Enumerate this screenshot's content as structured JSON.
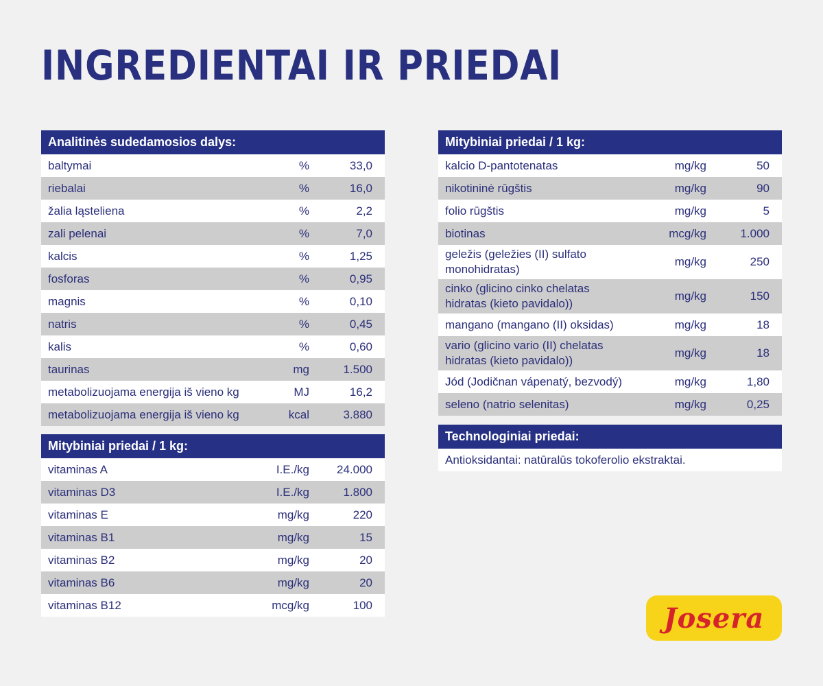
{
  "title": "INGREDIENTAI IR PRIEDAI",
  "analytical": {
    "header": "Analitinės sudedamosios dalys:",
    "rows": [
      {
        "name": "baltymai",
        "unit": "%",
        "value": "33,0"
      },
      {
        "name": "riebalai",
        "unit": "%",
        "value": "16,0"
      },
      {
        "name": "žalia ląsteliena",
        "unit": "%",
        "value": "2,2"
      },
      {
        "name": "zali pelenai",
        "unit": "%",
        "value": "7,0"
      },
      {
        "name": "kalcis",
        "unit": "%",
        "value": "1,25"
      },
      {
        "name": "fosforas",
        "unit": "%",
        "value": "0,95"
      },
      {
        "name": "magnis",
        "unit": "%",
        "value": "0,10"
      },
      {
        "name": "natris",
        "unit": "%",
        "value": "0,45"
      },
      {
        "name": "kalis",
        "unit": "%",
        "value": "0,60"
      },
      {
        "name": "taurinas",
        "unit": "mg",
        "value": "1.500"
      },
      {
        "name": "metabolizuojama energija iš vieno kg",
        "unit": "MJ",
        "value": "16,2"
      },
      {
        "name": "metabolizuojama energija iš vieno kg",
        "unit": "kcal",
        "value": "3.880"
      }
    ]
  },
  "vitamins": {
    "header": "Mitybiniai priedai / 1 kg:",
    "rows": [
      {
        "name": "vitaminas A",
        "unit": "I.E./kg",
        "value": "24.000"
      },
      {
        "name": "vitaminas D3",
        "unit": "I.E./kg",
        "value": "1.800"
      },
      {
        "name": "vitaminas E",
        "unit": "mg/kg",
        "value": "220"
      },
      {
        "name": "vitaminas B1",
        "unit": "mg/kg",
        "value": "15"
      },
      {
        "name": "vitaminas B2",
        "unit": "mg/kg",
        "value": "20"
      },
      {
        "name": "vitaminas B6",
        "unit": "mg/kg",
        "value": "20"
      },
      {
        "name": "vitaminas B12",
        "unit": "mcg/kg",
        "value": "100"
      }
    ]
  },
  "nutritional": {
    "header": "Mitybiniai priedai / 1 kg:",
    "rows": [
      {
        "name": "kalcio D-pantotenatas",
        "unit": "mg/kg",
        "value": "50"
      },
      {
        "name": "nikotininė rūgštis",
        "unit": "mg/kg",
        "value": "90"
      },
      {
        "name": "folio rūgštis",
        "unit": "mg/kg",
        "value": "5"
      },
      {
        "name": "biotinas",
        "unit": "mcg/kg",
        "value": "1.000"
      },
      {
        "name": "geležis (geležies (II) sulfato monohidratas)",
        "unit": "mg/kg",
        "value": "250",
        "tall": true
      },
      {
        "name": "cinko (glicino cinko chelatas hidratas (kieto pavidalo))",
        "unit": "mg/kg",
        "value": "150",
        "tall": true
      },
      {
        "name": "mangano (mangano (II) oksidas)",
        "unit": "mg/kg",
        "value": "18"
      },
      {
        "name": "vario (glicino vario (II) chelatas hidratas (kieto pavidalo))",
        "unit": "mg/kg",
        "value": "18",
        "tall": true
      },
      {
        "name": "Jód (Jodičnan vápenatý, bezvodý)",
        "unit": "mg/kg",
        "value": "1,80"
      },
      {
        "name": "seleno (natrio selenitas)",
        "unit": "mg/kg",
        "value": "0,25"
      }
    ]
  },
  "technological": {
    "header": "Technologiniai priedai:",
    "text": "Antioksidantai: natūralūs tokoferolio ekstraktai."
  },
  "logo": {
    "text": "Josera"
  },
  "colors": {
    "header_bg": "#263185",
    "text": "#2b2f7a",
    "stripe": "#cdcdcd",
    "logo_bg": "#f7d31a",
    "logo_text": "#d6242b"
  }
}
